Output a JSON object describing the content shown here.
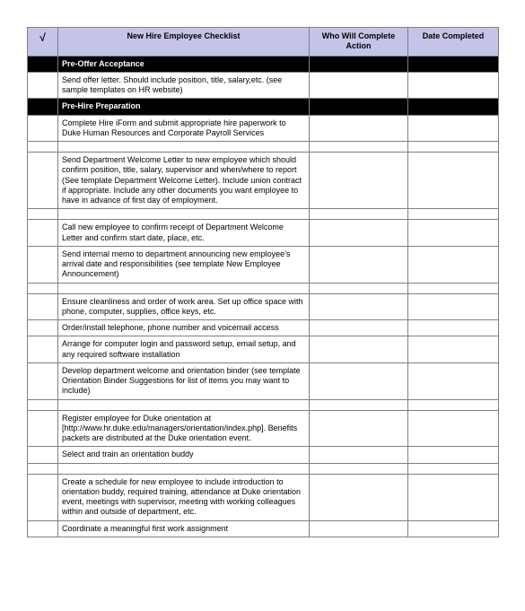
{
  "headers": {
    "check": "√",
    "desc": "New Hire Employee Checklist",
    "who": "Who Will Complete Action",
    "date": "Date Completed"
  },
  "header_bg": "#c4c4e8",
  "section_bg": "#000000",
  "section_fg": "#ffffff",
  "border_color": "#808080",
  "columns": {
    "check_width": 34,
    "desc_width": 280,
    "who_width": 110,
    "date_width": 101
  },
  "font_size_body": 9,
  "font_size_header": 9,
  "rows": [
    {
      "type": "section",
      "label": "Pre-Offer Acceptance"
    },
    {
      "type": "task",
      "text": "Send offer letter. Should include position, title, salary,etc. (see sample templates on HR website)"
    },
    {
      "type": "section",
      "label": "Pre-Hire Preparation"
    },
    {
      "type": "task",
      "text": "Complete Hire iForm and submit appropriate hire paperwork to Duke Human Resources and Corporate Payroll Services"
    },
    {
      "type": "spacer"
    },
    {
      "type": "task",
      "text": "Send Department Welcome Letter to new employee which should confirm position, title, salary, supervisor and when/where to report (See template Department Welcome Letter). Include union contract if appropriate. Include any other documents you want employee to have in advance of first day of employment."
    },
    {
      "type": "spacer"
    },
    {
      "type": "task",
      "text": "Call new employee to confirm receipt of Department Welcome Letter and confirm start date, place, etc."
    },
    {
      "type": "task",
      "text": "Send internal memo to department announcing new employee's arrival date and responsibilities (see template New Employee Announcement)"
    },
    {
      "type": "spacer"
    },
    {
      "type": "task",
      "text": "Ensure cleanliness and order of work area. Set up office space with phone, computer, supplies, office keys, etc."
    },
    {
      "type": "task",
      "text": "Order/install telephone, phone number and voicemail access"
    },
    {
      "type": "task",
      "text": "Arrange for computer login and password setup, email setup, and any required software installation"
    },
    {
      "type": "task",
      "text": "Develop department welcome and orientation binder (see template Orientation Binder Suggestions for list of items you may want to include)"
    },
    {
      "type": "spacer"
    },
    {
      "type": "task",
      "text": "Register employee for Duke orientation at [http://www.hr.duke.edu/managers/orientation/index.php]. Benefits packets are distributed at the Duke orientation event."
    },
    {
      "type": "task",
      "text": "Select and train an orientation buddy"
    },
    {
      "type": "spacer"
    },
    {
      "type": "task",
      "text": "Create a schedule for new employee to include introduction to orientation buddy, required training, attendance at Duke orientation event, meetings with supervisor, meeting with working colleagues within and outside of department, etc."
    },
    {
      "type": "task",
      "text": "Coordinate a meaningful first work assignment"
    }
  ]
}
